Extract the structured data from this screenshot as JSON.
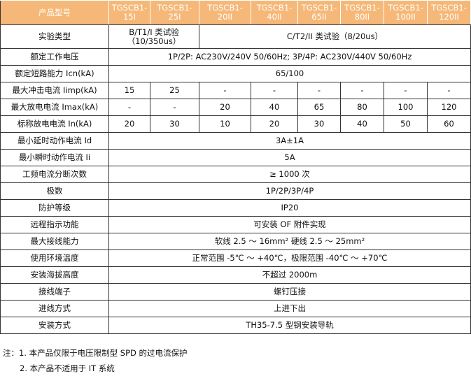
{
  "header": {
    "label": "产品型号",
    "models": [
      [
        "TGSCB1-",
        "15I"
      ],
      [
        "TGSCB1-",
        "25I"
      ],
      [
        "TGSCB1-",
        "20II"
      ],
      [
        "TGSCB1-",
        "40II"
      ],
      [
        "TGSCB1-",
        "65II"
      ],
      [
        "TGSCB1-",
        "80II"
      ],
      [
        "TGSCB1-",
        "100II"
      ],
      [
        "TGSCB1-",
        "120II"
      ]
    ]
  },
  "test_type": {
    "label": "实验类型",
    "class1": [
      "B/T1/I 类试验",
      "（10/350us）"
    ],
    "class2": "C/T2/II 类试验（8/20us）"
  },
  "rows_full1": [
    {
      "label": "额定工作电压",
      "value": "1P/2P: AC230V/240V 50/60Hz; 3P/4P: AC230V/440V 50/60Hz"
    },
    {
      "label": "额定短路能力 Icn(kA)",
      "value": "65/100"
    }
  ],
  "rows_split": [
    {
      "label": "最大冲击电流 Iimp(kA)",
      "values": [
        "15",
        "25",
        "-",
        "-",
        "-",
        "-",
        "-",
        "-"
      ]
    },
    {
      "label": "最大放电电流 Imax(kA)",
      "values": [
        "-",
        "-",
        "20",
        "40",
        "65",
        "80",
        "100",
        "120"
      ]
    },
    {
      "label": "标称放电电流 In(kA)",
      "values": [
        "20",
        "30",
        "10",
        "20",
        "30",
        "40",
        "50",
        "60"
      ]
    }
  ],
  "rows_full2": [
    {
      "label": "最小延时动作电流 Id",
      "value": "3A±1A"
    },
    {
      "label": "最小瞬时动作电流 Ii",
      "value": "5A"
    },
    {
      "label": "工频电流分断次数",
      "value": "≥ 1000 次"
    },
    {
      "label": "极数",
      "value": "1P/2P/3P/4P"
    },
    {
      "label": "防护等级",
      "value": "IP20"
    },
    {
      "label": "远程指示功能",
      "value": "可安装 OF 附件实现"
    },
    {
      "label": "最大接线能力",
      "value": "软线 2.5 ～ 16mm² 硬线 2.5 ～ 25mm²"
    },
    {
      "label": "使用环境温度",
      "value": "正常范围 -5℃ ～ +40℃，极限范围 -40℃ ～ +70℃"
    },
    {
      "label": "安装海拔高度",
      "value": "不超过 2000m"
    },
    {
      "label": "接线端子",
      "value": "螺钉压接"
    },
    {
      "label": "进线方式",
      "value": "上进下出"
    },
    {
      "label": "安装方式",
      "value": "TH35-7.5 型钢安装导轨"
    }
  ],
  "notes": [
    "注：1. 本产品仅限于电压限制型 SPD 的过电流保护",
    "2. 本产品不适用于 IT 系统"
  ],
  "colors": {
    "header_bg": "#f5b878"
  }
}
